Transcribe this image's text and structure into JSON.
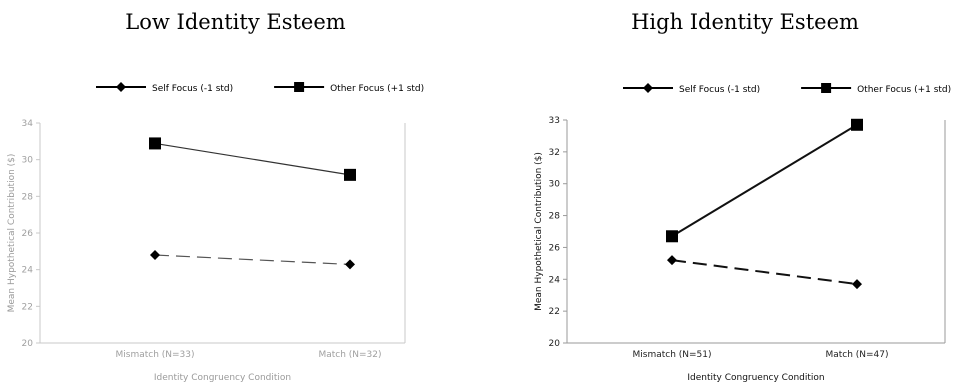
{
  "panels": [
    {
      "title": "Low Identity Esteem",
      "faded": true,
      "chart_data": {
        "type": "line",
        "categories": [
          "Mismatch (N=33)",
          "Match (N=32)"
        ],
        "xlabel": "Identity Congruency Condition",
        "ylabel": "Mean Hypothetical Contribution ($)",
        "ylim": [
          20,
          34
        ],
        "yticks": [
          "20",
          "22",
          "24",
          "26",
          "28",
          "30",
          "34"
        ],
        "grid": false,
        "legend_position": "top",
        "series": [
          {
            "name": "Self Focus (-1 std)",
            "values": [
              25.6,
              25.0
            ],
            "marker": "diamond",
            "dash": "dashed"
          },
          {
            "name": "Other Focus (+1 std)",
            "values": [
              32.7,
              30.7
            ],
            "marker": "square",
            "dash": "solid"
          }
        ]
      }
    },
    {
      "title": "High Identity Esteem",
      "faded": false,
      "chart_data": {
        "type": "line",
        "categories": [
          "Mismatch (N=51)",
          "Match (N=47)"
        ],
        "xlabel": "Identity Congruency Condition",
        "ylabel": "Mean Hypothetical Contribution ($)",
        "ylim": [
          20,
          34
        ],
        "yticks": [
          "20",
          "22",
          "24",
          "26",
          "28",
          "30",
          "32",
          "33"
        ],
        "grid": false,
        "legend_position": "top",
        "series": [
          {
            "name": "Self Focus (-1 std)",
            "values": [
              25.2,
              23.7
            ],
            "marker": "diamond",
            "dash": "dashed"
          },
          {
            "name": "Other Focus (+1 std)",
            "values": [
              26.7,
              33.7
            ],
            "marker": "square",
            "dash": "solid"
          }
        ]
      }
    }
  ]
}
